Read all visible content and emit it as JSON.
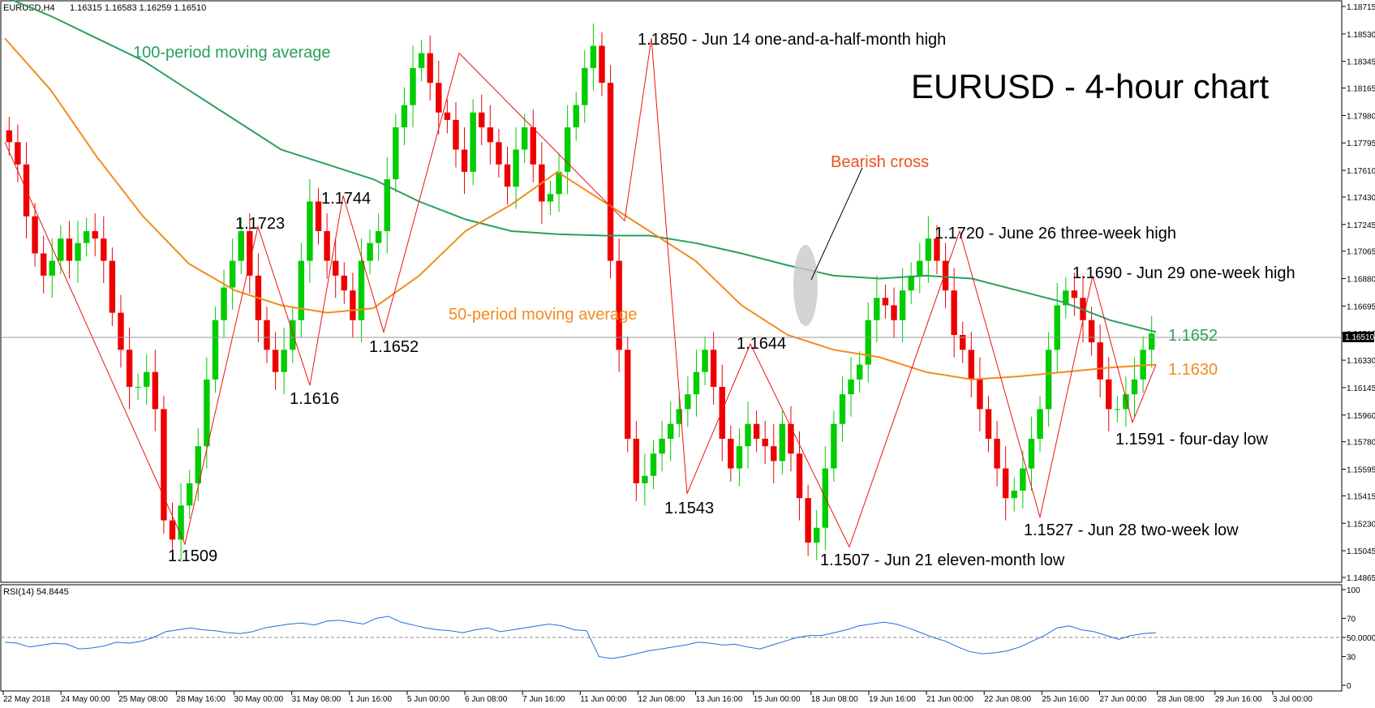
{
  "header": {
    "symbol_label": "EURUSD,H4",
    "ohlc_text": "1.16315 1.16583 1.16259 1.16510"
  },
  "rsi_label": "RSI(14) 54.8445",
  "chart_data": [
    {
      "type": "candlestick",
      "title": "EURUSD - 4-hour chart",
      "price_axis_ticks": [
        "1.18715",
        "1.18530",
        "1.18345",
        "1.18165",
        "1.17980",
        "1.17795",
        "1.17610",
        "1.17430",
        "1.17245",
        "1.17065",
        "1.16880",
        "1.16695",
        "1.16510",
        "1.16330",
        "1.16145",
        "1.15960",
        "1.15780",
        "1.15595",
        "1.15415",
        "1.15230",
        "1.15045",
        "1.14865"
      ],
      "last_price": "1.16510",
      "ylim": [
        1.14865,
        1.18715
      ],
      "x_tick_labels": [
        "22 May 2018",
        "24 May 00:00",
        "25 May 08:00",
        "28 May 16:00",
        "30 May 00:00",
        "31 May 08:00",
        "1 Jun 16:00",
        "5 Jun 00:00",
        "6 Jun 08:00",
        "7 Jun 16:00",
        "11 Jun 00:00",
        "12 Jun 08:00",
        "13 Jun 16:00",
        "15 Jun 00:00",
        "18 Jun 08:00",
        "19 Jun 16:00",
        "21 Jun 00:00",
        "22 Jun 08:00",
        "25 Jun 16:00",
        "27 Jun 00:00",
        "28 Jun 08:00",
        "29 Jun 16:00",
        "3 Jul 00:00"
      ],
      "close_path": [
        1.178,
        1.1765,
        1.173,
        1.1705,
        1.169,
        1.17,
        1.1715,
        1.17,
        1.1712,
        1.172,
        1.1715,
        1.17,
        1.1665,
        1.164,
        1.1615,
        1.1615,
        1.1625,
        1.16,
        1.1525,
        1.1512,
        1.1535,
        1.155,
        1.1575,
        1.162,
        1.166,
        1.1682,
        1.17,
        1.172,
        1.169,
        1.166,
        1.164,
        1.1625,
        1.164,
        1.166,
        1.17,
        1.174,
        1.172,
        1.17,
        1.169,
        1.168,
        1.166,
        1.17,
        1.1712,
        1.172,
        1.1755,
        1.179,
        1.1805,
        1.183,
        1.184,
        1.182,
        1.18,
        1.1795,
        1.1775,
        1.176,
        1.18,
        1.179,
        1.178,
        1.1765,
        1.175,
        1.1775,
        1.179,
        1.1765,
        1.174,
        1.1745,
        1.176,
        1.179,
        1.1805,
        1.183,
        1.1845,
        1.182,
        1.17,
        1.164,
        1.158,
        1.155,
        1.1555,
        1.157,
        1.158,
        1.159,
        1.16,
        1.161,
        1.1625,
        1.164,
        1.1615,
        1.158,
        1.156,
        1.1575,
        1.159,
        1.158,
        1.1575,
        1.1565,
        1.159,
        1.157,
        1.154,
        1.151,
        1.152,
        1.156,
        1.159,
        1.161,
        1.162,
        1.163,
        1.166,
        1.1675,
        1.167,
        1.166,
        1.168,
        1.169,
        1.17,
        1.1715,
        1.17,
        1.168,
        1.165,
        1.164,
        1.162,
        1.16,
        1.158,
        1.156,
        1.154,
        1.1545,
        1.156,
        1.158,
        1.16,
        1.164,
        1.167,
        1.168,
        1.1675,
        1.166,
        1.1645,
        1.162,
        1.16,
        1.16,
        1.161,
        1.162,
        1.164,
        1.1651
      ],
      "series": [
        {
          "name": "100-period moving average",
          "color": "#2aa05a",
          "values": [
            1.1878,
            1.1865,
            1.185,
            1.1835,
            1.1815,
            1.1795,
            1.1775,
            1.1765,
            1.1755,
            1.174,
            1.1728,
            1.172,
            1.1718,
            1.1717,
            1.1717,
            1.1712,
            1.1705,
            1.1697,
            1.169,
            1.1688,
            1.169,
            1.1688,
            1.168,
            1.1672,
            1.166,
            1.1652
          ],
          "end_label": "1.1652"
        },
        {
          "name": "50-period moving average",
          "color": "#f28c1e",
          "values": [
            1.185,
            1.1815,
            1.177,
            1.173,
            1.1698,
            1.168,
            1.167,
            1.1665,
            1.1668,
            1.169,
            1.172,
            1.1738,
            1.176,
            1.174,
            1.172,
            1.17,
            1.167,
            1.165,
            1.164,
            1.1635,
            1.1625,
            1.162,
            1.1622,
            1.1625,
            1.1628,
            1.163
          ],
          "end_label": "1.1630"
        }
      ],
      "swing_points": [
        1.178,
        1.1509,
        1.1723,
        1.1616,
        1.1744,
        1.1652,
        1.184,
        1.1727,
        1.185,
        1.1543,
        1.1644,
        1.1507,
        1.172,
        1.1527,
        1.169,
        1.1591,
        1.163
      ],
      "annotations": [
        {
          "text": "1.1850 - Jun 14 one-and-a-half-month high",
          "value": 1.185
        },
        {
          "text": "1.1723",
          "value": 1.1723
        },
        {
          "text": "1.1744",
          "value": 1.1744
        },
        {
          "text": "1.1652",
          "value": 1.1652
        },
        {
          "text": "1.1616",
          "value": 1.1616
        },
        {
          "text": "1.1509",
          "value": 1.1509
        },
        {
          "text": "1.1644",
          "value": 1.1644
        },
        {
          "text": "1.1543",
          "value": 1.1543
        },
        {
          "text": "1.1507 - Jun 21 eleven-month low",
          "value": 1.1507
        },
        {
          "text": "1.1720 - June 26 three-week high",
          "value": 1.172
        },
        {
          "text": "1.1690 - Jun 29 one-week high",
          "value": 1.169
        },
        {
          "text": "1.1591 - four-day low",
          "value": 1.1591
        },
        {
          "text": "1.1527 - Jun 28 two-week low",
          "value": 1.1527
        },
        {
          "text": "Bearish cross",
          "color": "#e8531e"
        },
        {
          "text": "100-period moving average",
          "color": "#2aa05a"
        },
        {
          "text": "50-period moving average",
          "color": "#f28c1e"
        },
        {
          "text": "1.1652",
          "color": "#2aa05a"
        },
        {
          "text": "1.1630",
          "color": "#f28c1e"
        }
      ],
      "colors": {
        "bull": "#00cc00",
        "bear": "#ee0000",
        "swing_line": "#ee1111"
      }
    },
    {
      "type": "line",
      "name": "RSI(14)",
      "value": 54.8445,
      "ylim": [
        0,
        100
      ],
      "ticks": [
        "100",
        "70",
        "50.0000",
        "30",
        "0"
      ],
      "level_line": 50,
      "color": "#1e6fe0",
      "values": [
        45,
        44,
        40,
        42,
        44,
        43,
        38,
        39,
        41,
        45,
        44,
        46,
        50,
        56,
        58,
        60,
        58,
        57,
        55,
        54,
        56,
        60,
        62,
        64,
        65,
        63,
        67,
        68,
        66,
        64,
        70,
        72,
        66,
        63,
        60,
        58,
        57,
        55,
        58,
        60,
        56,
        58,
        60,
        62,
        64,
        62,
        58,
        57,
        30,
        28,
        30,
        33,
        36,
        38,
        40,
        42,
        45,
        44,
        42,
        43,
        40,
        38,
        42,
        46,
        50,
        52,
        52,
        55,
        58,
        62,
        64,
        66,
        64,
        60,
        55,
        50,
        46,
        40,
        35,
        33,
        34,
        36,
        40,
        46,
        52,
        60,
        62,
        58,
        56,
        52,
        48,
        52,
        54,
        55
      ]
    }
  ]
}
